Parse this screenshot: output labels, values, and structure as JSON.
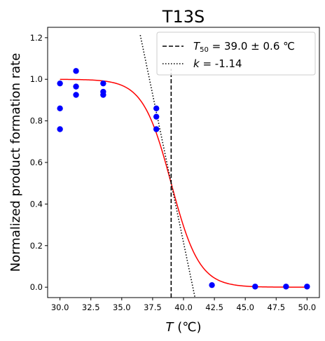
{
  "chart_data": {
    "type": "scatter",
    "title": "T13S",
    "xlabel_italic": "T",
    "xlabel_unit": " (℃)",
    "ylabel": "Normalized product formation rate",
    "xlim": [
      29.0,
      51.0
    ],
    "ylim": [
      -0.05,
      1.25
    ],
    "xticks": [
      30.0,
      32.5,
      35.0,
      37.5,
      40.0,
      42.5,
      45.0,
      47.5,
      50.0
    ],
    "xtick_labels": [
      "30.0",
      "32.5",
      "35.0",
      "37.5",
      "40.0",
      "42.5",
      "45.0",
      "47.5",
      "50.0"
    ],
    "yticks": [
      0.0,
      0.2,
      0.4,
      0.6,
      0.8,
      1.0,
      1.2
    ],
    "ytick_labels": [
      "0.0",
      "0.2",
      "0.4",
      "0.6",
      "0.8",
      "1.0",
      "1.2"
    ],
    "points": {
      "x": [
        30.0,
        30.0,
        30.0,
        31.3,
        31.3,
        31.3,
        33.5,
        33.5,
        33.5,
        37.8,
        37.8,
        37.8,
        42.3,
        45.8,
        48.3,
        50.0
      ],
      "y": [
        0.98,
        0.86,
        0.76,
        1.04,
        0.965,
        0.925,
        0.98,
        0.94,
        0.925,
        0.86,
        0.82,
        0.76,
        0.01,
        0.003,
        0.003,
        0.003
      ],
      "color": "#0000ff"
    },
    "fit": {
      "type": "sigmoid",
      "T50": 39.0,
      "k": -1.14,
      "top": 1.0,
      "bottom": 0.0,
      "color": "#ff0000"
    },
    "t50_line": {
      "x": 39.0,
      "y_top": 1.05,
      "color": "#000000",
      "style": "dashed"
    },
    "slope_line": {
      "x_range": [
        36.5,
        41.0
      ],
      "slope": -0.285,
      "color": "#000000",
      "style": "dotted"
    },
    "legend": {
      "placement": "top-right",
      "entries": [
        {
          "italic": "T",
          "sub": "50",
          "rest": " = 39.0 ± 0.6 ℃",
          "style": "dashed"
        },
        {
          "italic": "k",
          "sub": "",
          "rest": " = -1.14",
          "style": "dotted"
        }
      ]
    }
  }
}
